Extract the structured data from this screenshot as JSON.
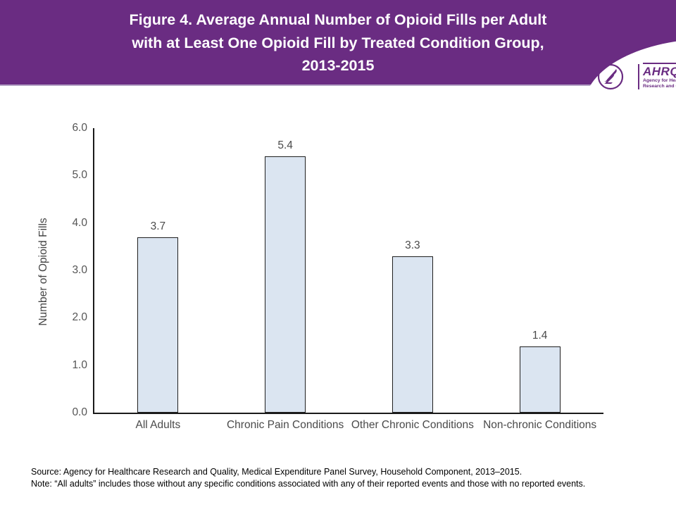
{
  "banner": {
    "title": "Figure 4. Average Annual Number of Opioid Fills per Adult\nwith at Least One Opioid Fill by Treated Condition Group,\n2013-2015",
    "background_color": "#6a2c82",
    "logo": {
      "acronym": "AHRQ",
      "tagline": "Agency for Healthcare\nResearch and Quality"
    }
  },
  "chart_data": {
    "type": "bar",
    "title": "Figure 4. Average Annual Number of Opioid Fills per Adult with at Least One Opioid Fill by Treated Condition Group, 2013-2015",
    "categories": [
      "All Adults",
      "Chronic Pain Conditions",
      "Other Chronic Conditions",
      "Non-chronic Conditions"
    ],
    "values": [
      3.7,
      5.4,
      3.3,
      1.4
    ],
    "data_labels": [
      "3.7",
      "5.4",
      "3.3",
      "1.4"
    ],
    "xlabel": "",
    "ylabel": "Number of Opioid Fills",
    "ylim": [
      0,
      6
    ],
    "yticks": [
      "0.0",
      "1.0",
      "2.0",
      "3.0",
      "4.0",
      "5.0",
      "6.0"
    ],
    "grid": false,
    "legend_position": "none",
    "bar_fill_color": "#dbe5f1",
    "bar_border_color": "#1f1f1f"
  },
  "footer": {
    "source": "Source: Agency for Healthcare Research and Quality, Medical Expenditure Panel Survey, Household Component, 2013–2015.",
    "note": "Note: “All adults” includes those without any specific conditions associated with any of their reported events and those with no reported events."
  }
}
